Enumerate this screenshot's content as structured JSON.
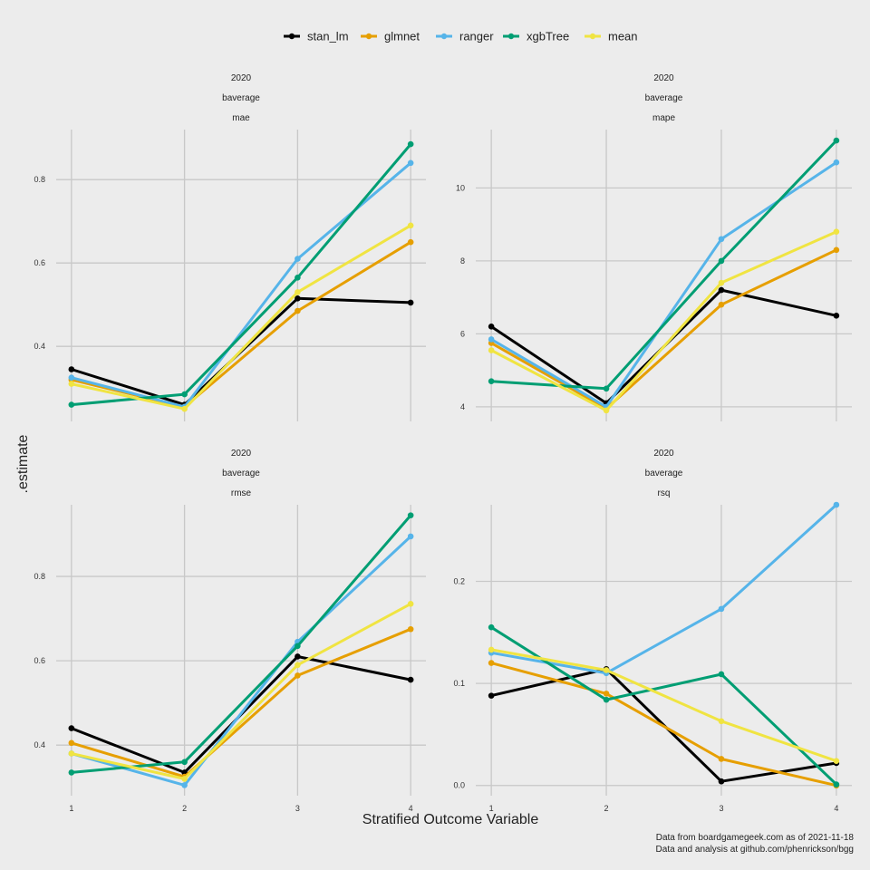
{
  "chart_data": {
    "type": "line",
    "facet_layout": "2x2 grid",
    "xlabel": "Stratified Outcome Variable",
    "ylabel": ".estimate",
    "x": [
      1,
      2,
      3,
      4
    ],
    "x_ticks": [
      "1",
      "2",
      "3",
      "4"
    ],
    "legend": {
      "placement": "top",
      "entries": [
        {
          "name": "stan_lm",
          "color": "#000000"
        },
        {
          "name": "glmnet",
          "color": "#E69F00"
        },
        {
          "name": "ranger",
          "color": "#56B4E9"
        },
        {
          "name": "xgbTree",
          "color": "#009E73"
        },
        {
          "name": "mean",
          "color": "#F0E442"
        }
      ]
    },
    "caption": [
      "Data from boardgamegeek.com as of 2021-11-18",
      "Data and analysis at github.com/phenrickson/bgg"
    ],
    "grid": true,
    "panels": [
      {
        "strip": [
          "2020",
          "baverage",
          "mae"
        ],
        "ylim": [
          0.22,
          0.92
        ],
        "y_ticks": [
          0.4,
          0.6,
          0.8
        ],
        "y_tick_labels": [
          "0.4",
          "0.6",
          "0.8"
        ],
        "series": [
          {
            "name": "stan_lm",
            "values": [
              0.345,
              0.26,
              0.515,
              0.505
            ]
          },
          {
            "name": "glmnet",
            "values": [
              0.32,
              0.255,
              0.485,
              0.65
            ]
          },
          {
            "name": "ranger",
            "values": [
              0.325,
              0.255,
              0.61,
              0.84
            ]
          },
          {
            "name": "xgbTree",
            "values": [
              0.26,
              0.285,
              0.565,
              0.885
            ]
          },
          {
            "name": "mean",
            "values": [
              0.31,
              0.25,
              0.53,
              0.69
            ]
          }
        ]
      },
      {
        "strip": [
          "2020",
          "baverage",
          "mape"
        ],
        "ylim": [
          3.6,
          11.6
        ],
        "y_ticks": [
          4,
          6,
          8,
          10
        ],
        "y_tick_labels": [
          "4",
          "6",
          "8",
          "10"
        ],
        "series": [
          {
            "name": "stan_lm",
            "values": [
              6.2,
              4.1,
              7.2,
              6.5
            ]
          },
          {
            "name": "glmnet",
            "values": [
              5.75,
              3.95,
              6.8,
              8.3
            ]
          },
          {
            "name": "ranger",
            "values": [
              5.85,
              4.0,
              8.6,
              10.7
            ]
          },
          {
            "name": "xgbTree",
            "values": [
              4.7,
              4.5,
              8.0,
              11.3
            ]
          },
          {
            "name": "mean",
            "values": [
              5.55,
              3.9,
              7.4,
              8.8
            ]
          }
        ]
      },
      {
        "strip": [
          "2020",
          "baverage",
          "rmse"
        ],
        "ylim": [
          0.28,
          0.97
        ],
        "y_ticks": [
          0.4,
          0.6,
          0.8
        ],
        "y_tick_labels": [
          "0.4",
          "0.6",
          "0.8"
        ],
        "series": [
          {
            "name": "stan_lm",
            "values": [
              0.44,
              0.335,
              0.61,
              0.555
            ]
          },
          {
            "name": "glmnet",
            "values": [
              0.405,
              0.325,
              0.565,
              0.675
            ]
          },
          {
            "name": "ranger",
            "values": [
              0.38,
              0.305,
              0.645,
              0.895
            ]
          },
          {
            "name": "xgbTree",
            "values": [
              0.335,
              0.36,
              0.635,
              0.945
            ]
          },
          {
            "name": "mean",
            "values": [
              0.38,
              0.32,
              0.59,
              0.735
            ]
          }
        ]
      },
      {
        "strip": [
          "2020",
          "baverage",
          "rsq"
        ],
        "ylim": [
          -0.01,
          0.275
        ],
        "y_ticks": [
          0.0,
          0.1,
          0.2
        ],
        "y_tick_labels": [
          "0.0",
          "0.1",
          "0.2"
        ],
        "series": [
          {
            "name": "stan_lm",
            "values": [
              0.088,
              0.114,
              0.004,
              0.022
            ]
          },
          {
            "name": "glmnet",
            "values": [
              0.12,
              0.09,
              0.026,
              0.0
            ]
          },
          {
            "name": "ranger",
            "values": [
              0.13,
              0.11,
              0.173,
              0.275
            ]
          },
          {
            "name": "xgbTree",
            "values": [
              0.155,
              0.084,
              0.109,
              0.001
            ]
          },
          {
            "name": "mean",
            "values": [
              0.133,
              0.113,
              0.063,
              0.024
            ]
          }
        ]
      }
    ]
  }
}
